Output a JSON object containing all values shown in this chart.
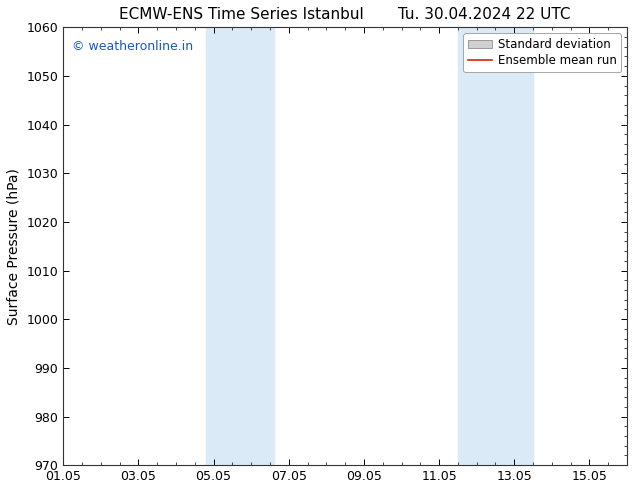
{
  "title_left": "ECMW-ENS Time Series Istanbul",
  "title_right": "Tu. 30.04.2024 22 UTC",
  "ylabel": "Surface Pressure (hPa)",
  "ylim": [
    970,
    1060
  ],
  "yticks": [
    970,
    980,
    990,
    1000,
    1010,
    1020,
    1030,
    1040,
    1050,
    1060
  ],
  "xlabel_dates": [
    "01.05",
    "03.05",
    "05.05",
    "07.05",
    "09.05",
    "11.05",
    "13.05",
    "15.05"
  ],
  "x_tick_positions": [
    0,
    2,
    4,
    6,
    8,
    10,
    12,
    14
  ],
  "xlim": [
    0,
    15
  ],
  "shaded_regions": [
    {
      "x_start": 3.8,
      "x_end": 4.5
    },
    {
      "x_start": 4.5,
      "x_end": 5.6
    },
    {
      "x_start": 10.5,
      "x_end": 11.5
    },
    {
      "x_start": 11.5,
      "x_end": 12.5
    }
  ],
  "shaded_color": "#daeaf7",
  "watermark_text": "© weatheronline.in",
  "watermark_color": "#1a56cc",
  "legend_std_label": "Standard deviation",
  "legend_mean_label": "Ensemble mean run",
  "legend_std_facecolor": "#d0d0d0",
  "legend_std_edgecolor": "#999999",
  "legend_mean_color": "#dd2200",
  "bg_color": "#ffffff",
  "title_fontsize": 11,
  "ylabel_fontsize": 10,
  "tick_fontsize": 9,
  "watermark_fontsize": 9,
  "legend_fontsize": 8.5
}
